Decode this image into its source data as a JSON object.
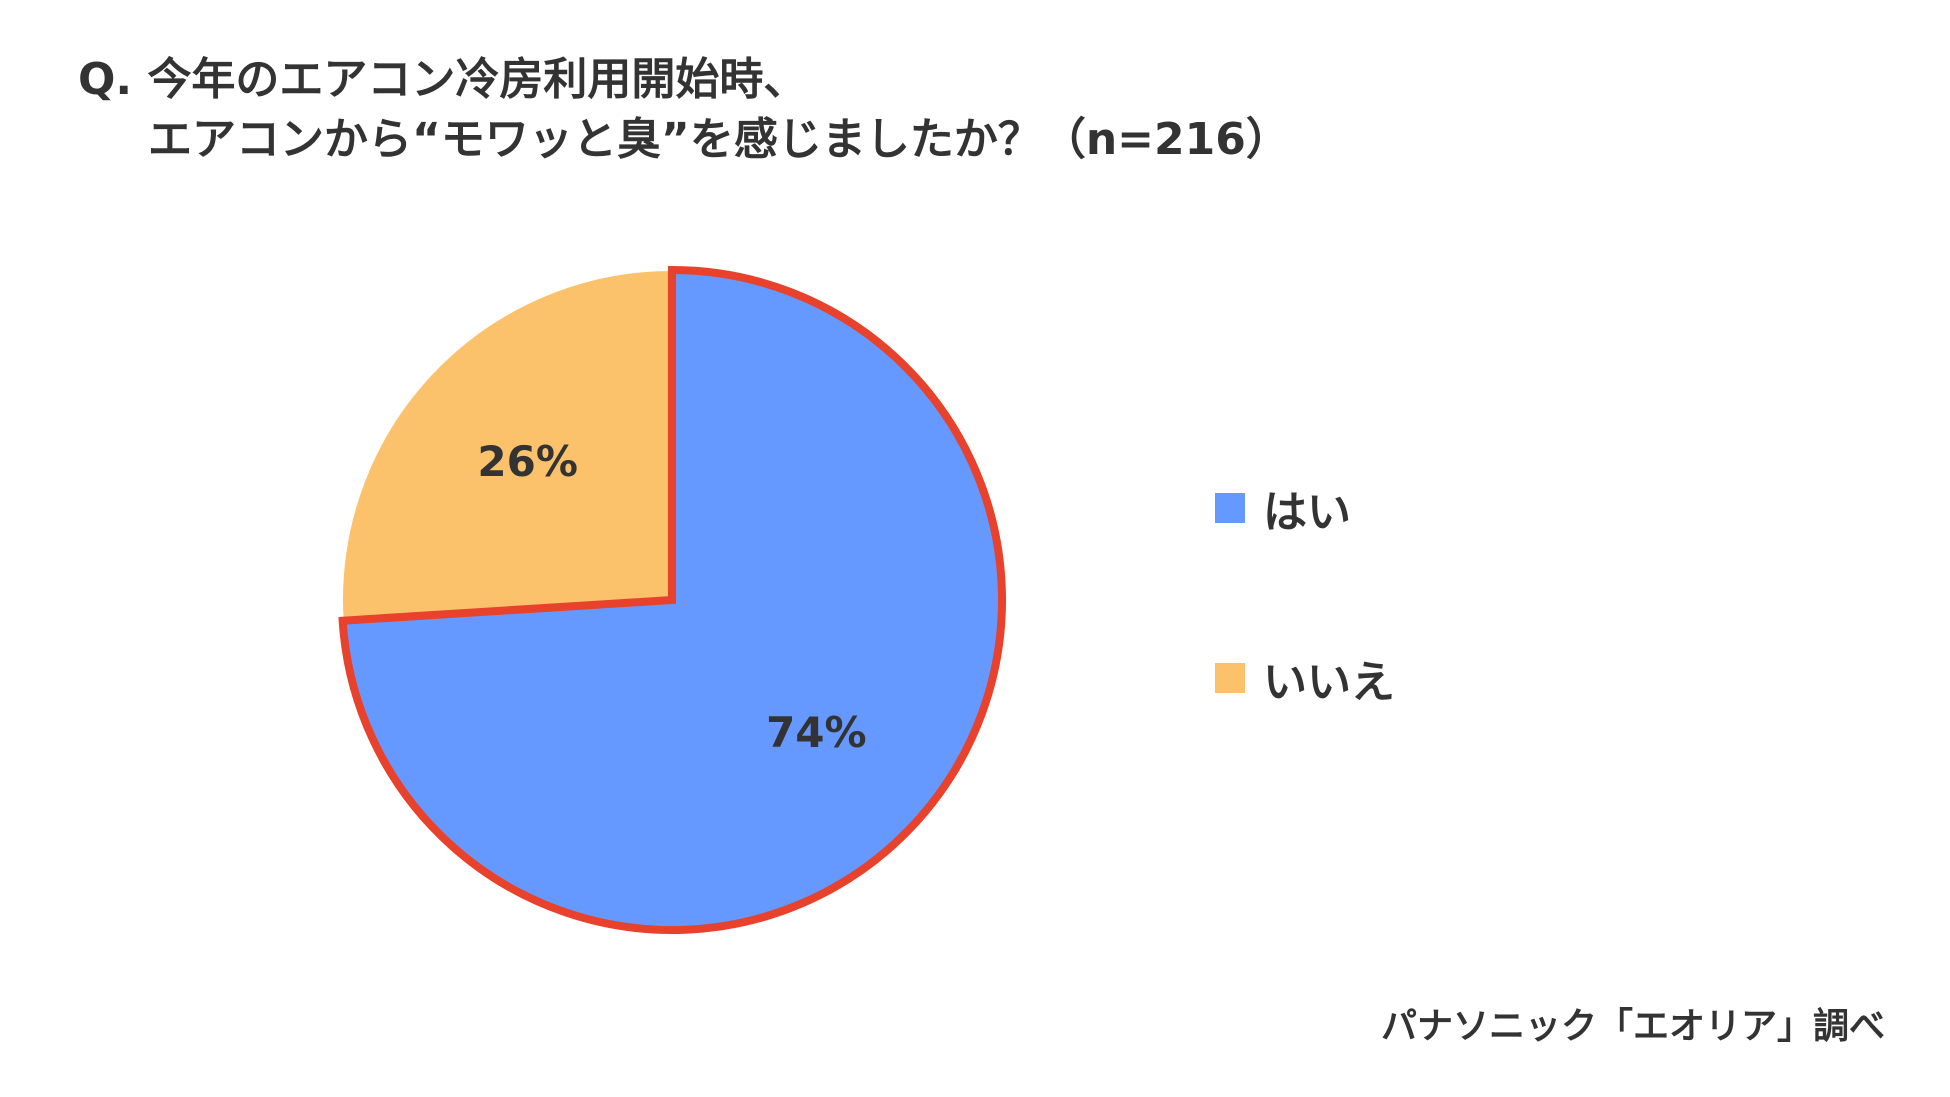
{
  "title": {
    "line1": "Q. 今年のエアコン冷房利用開始時、",
    "line2": "エアコンから“モワッと臭”を感じましたか？（n=216）"
  },
  "chart_data": {
    "type": "pie",
    "categories": [
      "はい",
      "いいえ"
    ],
    "values": [
      74,
      26
    ],
    "labels": [
      "74%",
      "26%"
    ],
    "colors": [
      "#6699ff",
      "#fcc26b"
    ],
    "highlight": "はい",
    "highlight_color": "#e8412c",
    "start_angle_deg": 0,
    "direction": "clockwise",
    "legend_position": "right"
  },
  "legend": {
    "items": [
      {
        "label": "はい",
        "color": "#6699ff"
      },
      {
        "label": "いいえ",
        "color": "#fcc26b"
      }
    ]
  },
  "source": "パナソニック「エオリア」調べ"
}
